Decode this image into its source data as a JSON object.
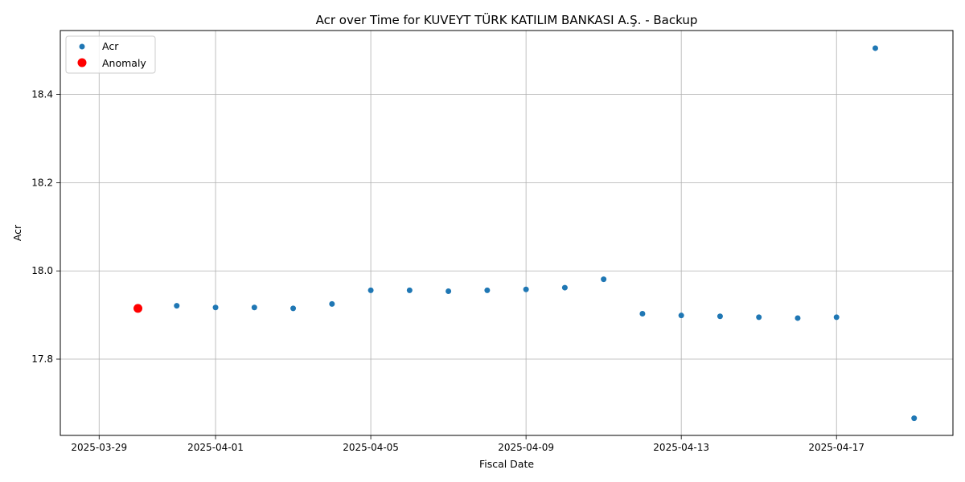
{
  "chart_data": {
    "type": "scatter",
    "title": "Acr over Time for KUVEYT TÜRK KATILIM BANKASI A.Ş. - Backup",
    "xlabel": "Fiscal Date",
    "ylabel": "Acr",
    "x_ticks": [
      "2025-03-29",
      "2025-04-01",
      "2025-04-05",
      "2025-04-09",
      "2025-04-13",
      "2025-04-17"
    ],
    "y_ticks": [
      "17.8",
      "18.0",
      "18.2",
      "18.4"
    ],
    "xlim": [
      "2025-03-28",
      "2025-04-20"
    ],
    "ylim": [
      17.627,
      18.545
    ],
    "grid": true,
    "legend_position": "top-left",
    "series": [
      {
        "name": "Acr",
        "color": "#1f77b4",
        "points": [
          {
            "x": "2025-03-30",
            "y": 17.915
          },
          {
            "x": "2025-03-31",
            "y": 17.921
          },
          {
            "x": "2025-04-01",
            "y": 17.917
          },
          {
            "x": "2025-04-02",
            "y": 17.917
          },
          {
            "x": "2025-04-03",
            "y": 17.915
          },
          {
            "x": "2025-04-04",
            "y": 17.925
          },
          {
            "x": "2025-04-05",
            "y": 17.956
          },
          {
            "x": "2025-04-06",
            "y": 17.956
          },
          {
            "x": "2025-04-07",
            "y": 17.954
          },
          {
            "x": "2025-04-08",
            "y": 17.956
          },
          {
            "x": "2025-04-09",
            "y": 17.958
          },
          {
            "x": "2025-04-10",
            "y": 17.962
          },
          {
            "x": "2025-04-11",
            "y": 17.981
          },
          {
            "x": "2025-04-12",
            "y": 17.903
          },
          {
            "x": "2025-04-13",
            "y": 17.899
          },
          {
            "x": "2025-04-14",
            "y": 17.897
          },
          {
            "x": "2025-04-15",
            "y": 17.895
          },
          {
            "x": "2025-04-16",
            "y": 17.893
          },
          {
            "x": "2025-04-17",
            "y": 17.895
          },
          {
            "x": "2025-04-18",
            "y": 18.505
          },
          {
            "x": "2025-04-19",
            "y": 17.666
          }
        ]
      },
      {
        "name": "Anomaly",
        "color": "#ff0000",
        "points": [
          {
            "x": "2025-03-30",
            "y": 17.915
          }
        ]
      }
    ]
  }
}
